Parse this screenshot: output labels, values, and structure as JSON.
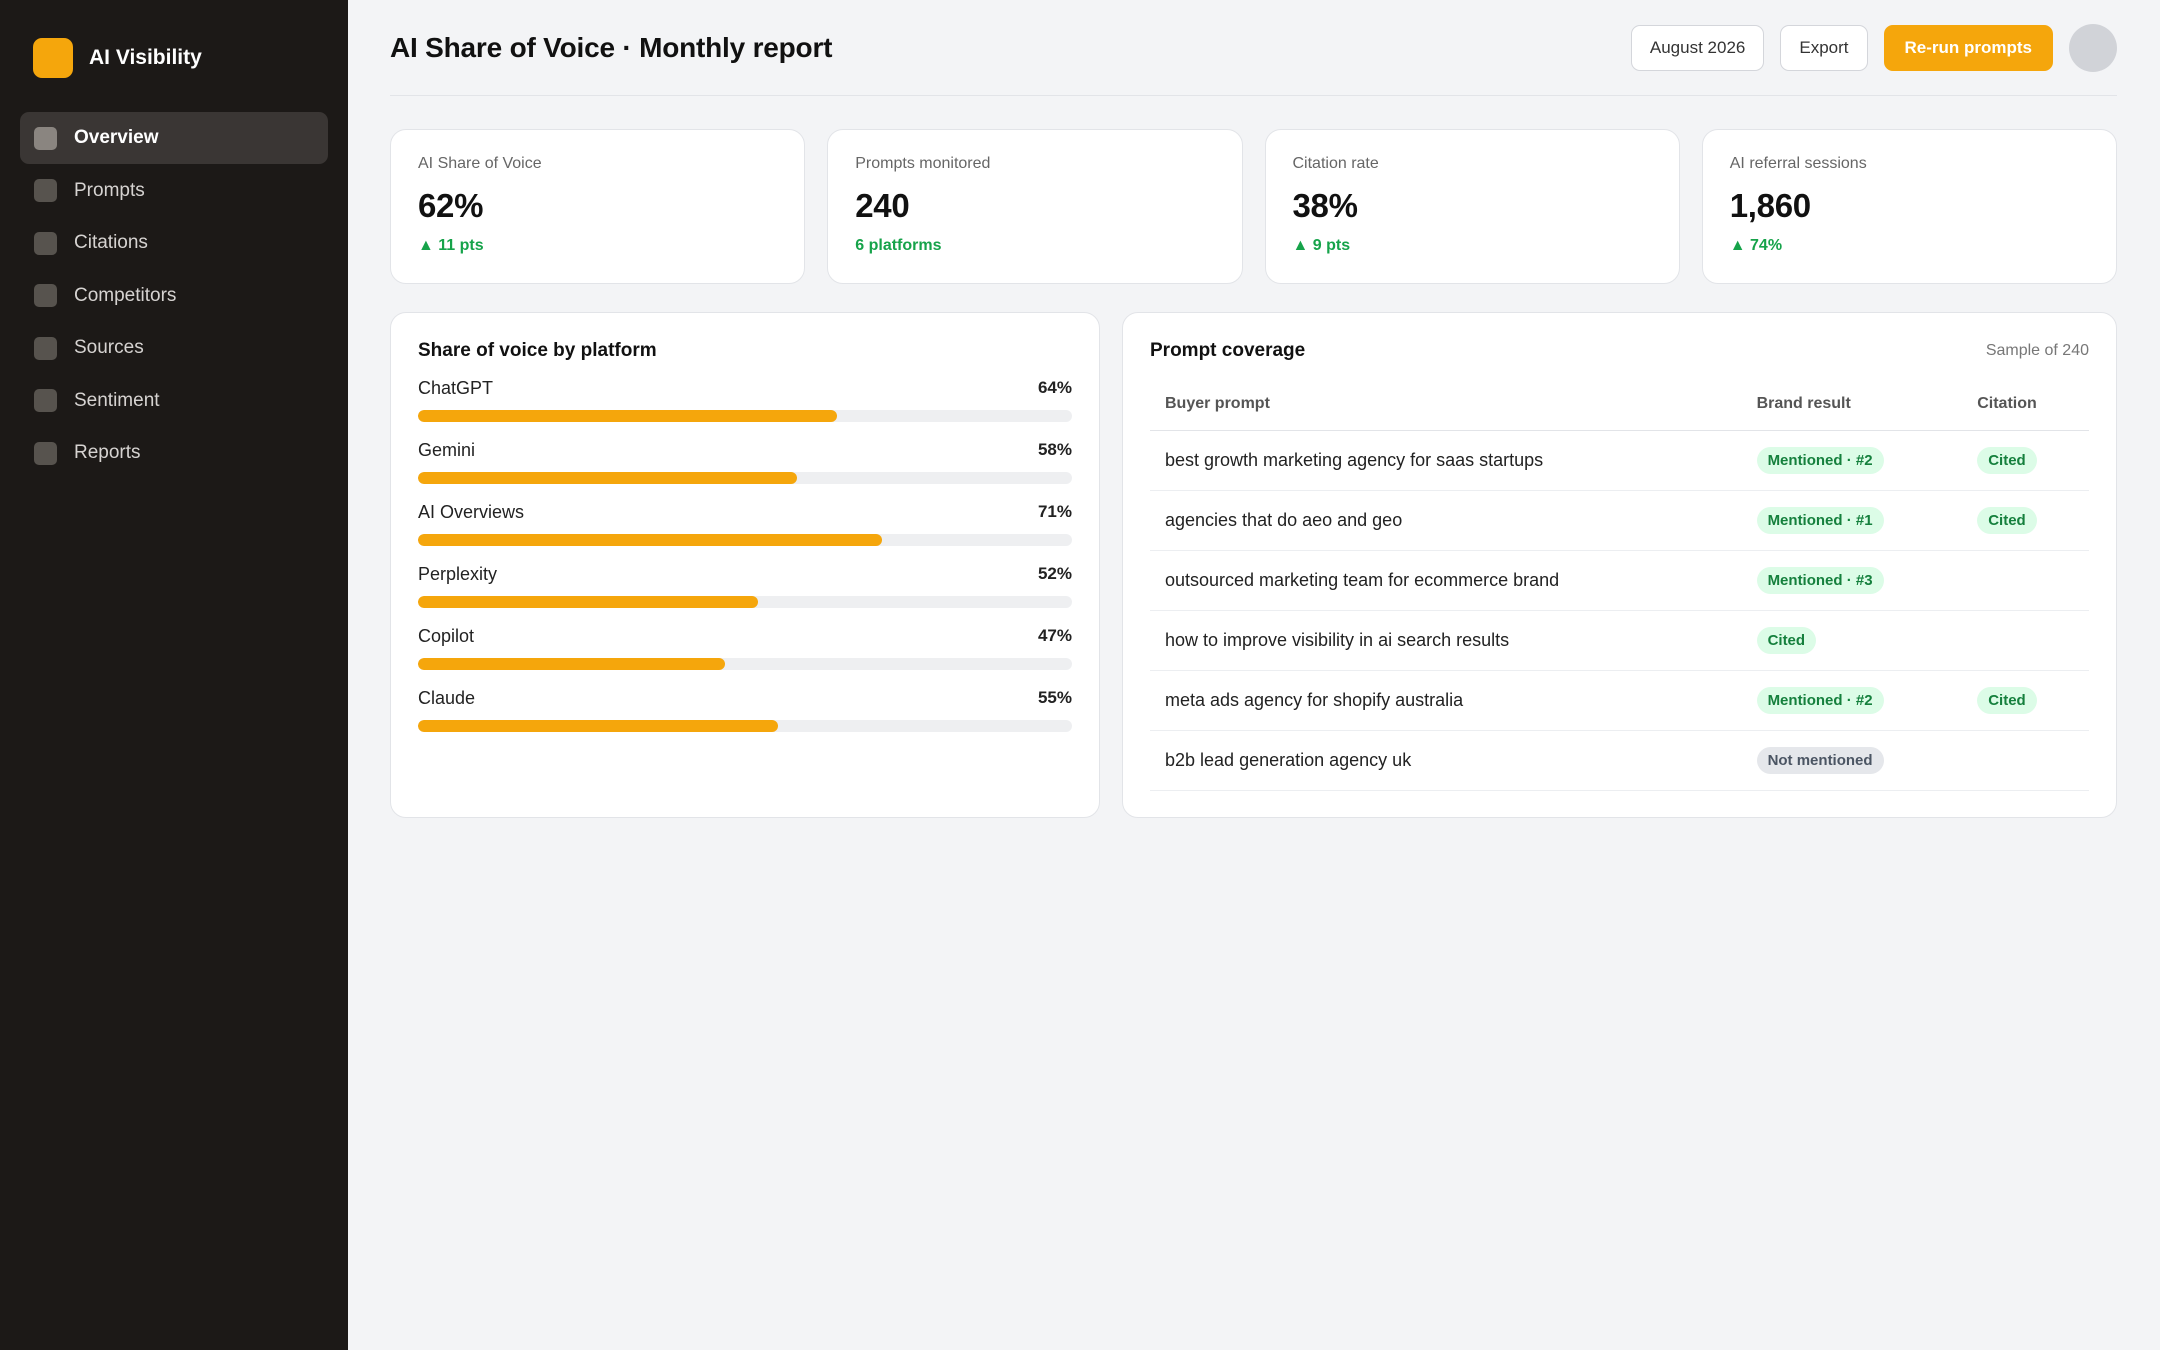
{
  "sidebar": {
    "brand": "AI Visibility",
    "items": [
      {
        "label": "Overview",
        "active": true
      },
      {
        "label": "Prompts",
        "active": false
      },
      {
        "label": "Citations",
        "active": false
      },
      {
        "label": "Competitors",
        "active": false
      },
      {
        "label": "Sources",
        "active": false
      },
      {
        "label": "Sentiment",
        "active": false
      },
      {
        "label": "Reports",
        "active": false
      }
    ]
  },
  "header": {
    "title": "AI Share of Voice · Monthly report",
    "period_label": "August 2026",
    "export_label": "Export",
    "rerun_label": "Re-run prompts"
  },
  "kpis": [
    {
      "label": "AI Share of Voice",
      "value": "62%",
      "delta": "▲ 11 pts"
    },
    {
      "label": "Prompts monitored",
      "value": "240",
      "delta": "6 platforms"
    },
    {
      "label": "Citation rate",
      "value": "38%",
      "delta": "▲ 9 pts"
    },
    {
      "label": "AI referral sessions",
      "value": "1,860",
      "delta": "▲ 74%"
    }
  ],
  "platforms": {
    "title": "Share of voice by platform",
    "items": [
      {
        "name": "ChatGPT",
        "pct_label": "64%",
        "value": 64
      },
      {
        "name": "Gemini",
        "pct_label": "58%",
        "value": 58
      },
      {
        "name": "AI Overviews",
        "pct_label": "71%",
        "value": 71
      },
      {
        "name": "Perplexity",
        "pct_label": "52%",
        "value": 52
      },
      {
        "name": "Copilot",
        "pct_label": "47%",
        "value": 47
      },
      {
        "name": "Claude",
        "pct_label": "55%",
        "value": 55
      }
    ]
  },
  "coverage": {
    "title": "Prompt coverage",
    "sample": "Sample of 240",
    "columns": [
      "Buyer prompt",
      "Brand result",
      "Citation"
    ],
    "rows": [
      {
        "prompt": "best growth marketing agency for saas startups",
        "result": "Mentioned · #2",
        "result_type": "positive",
        "citation": "Cited"
      },
      {
        "prompt": "agencies that do aeo and geo",
        "result": "Mentioned · #1",
        "result_type": "positive",
        "citation": "Cited"
      },
      {
        "prompt": "outsourced marketing team for ecommerce brand",
        "result": "Mentioned · #3",
        "result_type": "positive",
        "citation": ""
      },
      {
        "prompt": "how to improve visibility in ai search results",
        "result": "Cited",
        "result_type": "positive",
        "citation": ""
      },
      {
        "prompt": "meta ads agency for shopify australia",
        "result": "Mentioned · #2",
        "result_type": "positive",
        "citation": "Cited"
      },
      {
        "prompt": "b2b lead generation agency uk",
        "result": "Not mentioned",
        "result_type": "neutral",
        "citation": ""
      }
    ]
  },
  "colors": {
    "accent": "#f5a60c",
    "sidebar_bg": "#1c1917",
    "positive": "#16a34a",
    "badge_positive_bg": "#dcfce7",
    "badge_neutral_bg": "#e5e7eb"
  }
}
